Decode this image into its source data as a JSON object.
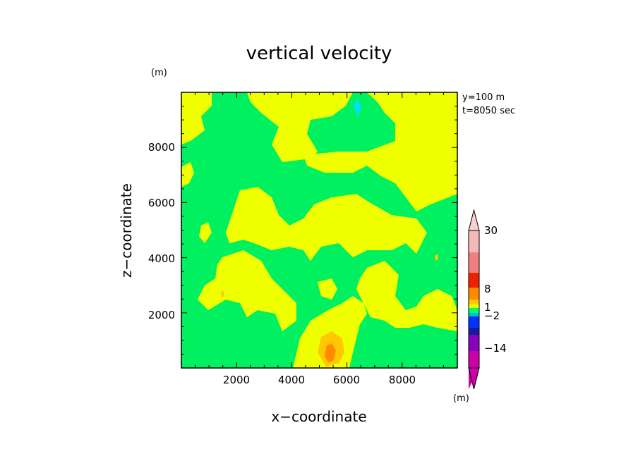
{
  "chart_data": {
    "type": "heatmap",
    "title": "vertical velocity",
    "xlabel": "x−coordinate",
    "ylabel": "z−coordinate",
    "x_unit": "(m)",
    "y_unit": "(m)",
    "annotations": [
      "y=100 m",
      "t=8050 sec"
    ],
    "xlim": [
      0,
      10000
    ],
    "ylim": [
      0,
      10000
    ],
    "xticks": [
      2000,
      4000,
      6000,
      8000
    ],
    "yticks": [
      2000,
      4000,
      6000,
      8000
    ],
    "xtick_labels": [
      "2000",
      "4000",
      "6000",
      "8000"
    ],
    "ytick_labels": [
      "2000",
      "4000",
      "6000",
      "8000"
    ],
    "colorbar": {
      "unit": "(m)",
      "labels": [
        "30",
        "8",
        "1",
        "−2",
        "−14"
      ],
      "levels": [
        -14,
        -2,
        1,
        8,
        30
      ],
      "colors": [
        "#cc00aa",
        "#8800bb",
        "#1a1aa0",
        "#0033ff",
        "#00c0c0",
        "#00ff66",
        "#e8ff00",
        "#ffc800",
        "#ff8a00",
        "#ee2200",
        "#f08080",
        "#f4b8b8",
        "#f4d0d0"
      ]
    },
    "regions": {
      "background_color": "#00f060",
      "positive_weak_color": "#f0ff00",
      "positive_moderate_color": "#ffc800",
      "positive_strong_color": "#ff8a00",
      "negative_color": "#00e0ff"
    }
  }
}
